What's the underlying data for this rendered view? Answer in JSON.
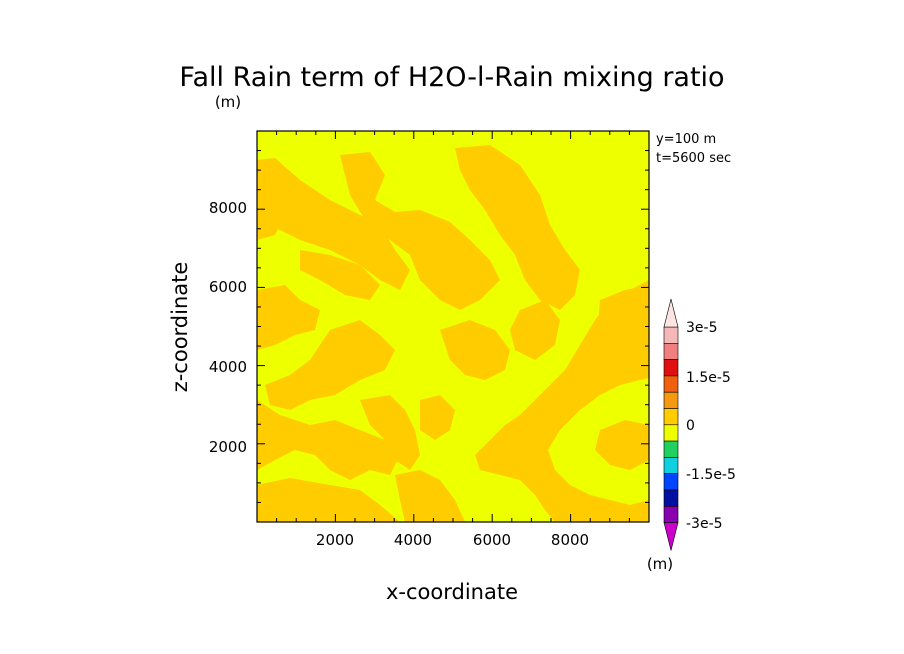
{
  "chart_data": {
    "type": "heatmap",
    "title": "Fall Rain term of H2O-l-Rain mixing ratio",
    "title_unit": "(m)",
    "xlabel": "x-coordinate",
    "ylabel": "z-coordinate",
    "xlim": [
      0,
      10000
    ],
    "ylim": [
      0,
      10000
    ],
    "x_ticks": [
      "2000",
      "4000",
      "6000",
      "8000"
    ],
    "y_ticks": [
      "2000",
      "4000",
      "6000",
      "8000"
    ],
    "annotations": [
      "y=100 m",
      "t=5600 sec"
    ],
    "colorbar": {
      "labels": [
        "3e-5",
        "1.5e-5",
        "0",
        "-1.5e-5",
        "-3e-5"
      ],
      "unit": "(m)",
      "levels": [
        {
          "from": 2.5e-05,
          "to": 3e-05,
          "color": "#f5b8b8"
        },
        {
          "from": 2e-05,
          "to": 2.5e-05,
          "color": "#f08080"
        },
        {
          "from": 1.5e-05,
          "to": 2e-05,
          "color": "#e01010"
        },
        {
          "from": 1e-05,
          "to": 1.5e-05,
          "color": "#f06010"
        },
        {
          "from": 5e-06,
          "to": 1e-05,
          "color": "#f59a10"
        },
        {
          "from": 0,
          "to": 5e-06,
          "color": "#ffcc00"
        },
        {
          "from": -5e-06,
          "to": 0,
          "color": "#eeff00"
        },
        {
          "from": -1e-05,
          "to": -5e-06,
          "color": "#20d060"
        },
        {
          "from": -1.5e-05,
          "to": -1e-05,
          "color": "#10d0e0"
        },
        {
          "from": -2e-05,
          "to": -1.5e-05,
          "color": "#0044ff"
        },
        {
          "from": -2.5e-05,
          "to": -2e-05,
          "color": "#0010a0"
        },
        {
          "from": -3e-05,
          "to": -2.5e-05,
          "color": "#8800b0"
        }
      ],
      "top_arrow_color": "#ffe4e4",
      "bottom_arrow_color": "#cc00cc"
    },
    "field_levels_present": [
      "0 to 5e-6",
      "-5e-6 to 0"
    ],
    "background_level_color": "#eeff00",
    "patch_level_color": "#ffcc00"
  }
}
